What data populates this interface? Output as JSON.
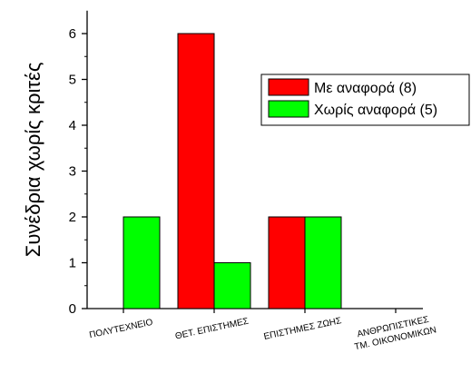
{
  "chart_data": {
    "type": "bar",
    "title": "",
    "xlabel": "",
    "ylabel": "Συνέδρια χωρίς κριτές",
    "ylim": [
      0,
      6.5
    ],
    "yticks": [
      0,
      1,
      2,
      3,
      4,
      5,
      6
    ],
    "categories": [
      [
        "ΠΟΛΥΤΕΧΝΕΙΟ"
      ],
      [
        "ΘΕΤ. ΕΠΙΣΤΗΜΕΣ"
      ],
      [
        "ΕΠΙΣΤΗΜΕΣ ΖΩΗΣ"
      ],
      [
        "ΑΝΘΡΩΠΙΣΤΙΚΕΣ",
        "ΤΜ. ΟΙΚΟΝΟΜΙΚΩΝ"
      ]
    ],
    "series": [
      {
        "name": "Με αναφορά (8)",
        "color": "#ff0000",
        "values": [
          0,
          6,
          2,
          0
        ]
      },
      {
        "name": "Χωρίς αναφορά (5)",
        "color": "#00ff00",
        "values": [
          2,
          1,
          2,
          0
        ]
      }
    ],
    "legend_position": "top-right",
    "grid": false
  }
}
